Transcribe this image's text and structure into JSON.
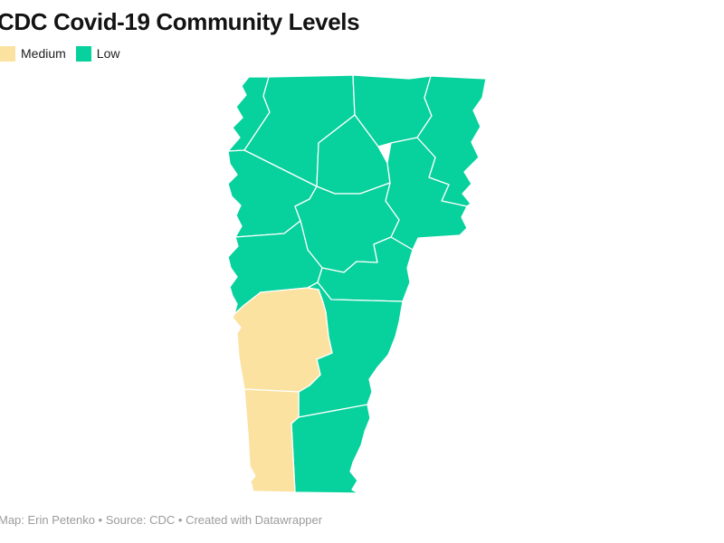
{
  "title": "CDC Covid-19 Community Levels",
  "legend": {
    "items": [
      {
        "label": "Medium",
        "color": "#fbe2a0"
      },
      {
        "label": "Low",
        "color": "#07d19c"
      }
    ]
  },
  "footer": "Map: Erin Petenko • Source: CDC • Created with Datawrapper",
  "chart_data": {
    "type": "choropleth-map",
    "region": "Vermont counties, USA",
    "title": "CDC Covid-19 Community Levels",
    "legend_position": "top-left",
    "levels": [
      "Medium",
      "Low"
    ],
    "counties": [
      {
        "name": "Grand Isle",
        "level": "Low"
      },
      {
        "name": "Franklin",
        "level": "Low"
      },
      {
        "name": "Orleans",
        "level": "Low"
      },
      {
        "name": "Essex",
        "level": "Low"
      },
      {
        "name": "Chittenden",
        "level": "Low"
      },
      {
        "name": "Lamoille",
        "level": "Low"
      },
      {
        "name": "Caledonia",
        "level": "Low"
      },
      {
        "name": "Washington",
        "level": "Low"
      },
      {
        "name": "Addison",
        "level": "Low"
      },
      {
        "name": "Orange",
        "level": "Low"
      },
      {
        "name": "Windsor",
        "level": "Low"
      },
      {
        "name": "Windham",
        "level": "Low"
      },
      {
        "name": "Rutland",
        "level": "Medium"
      },
      {
        "name": "Bennington",
        "level": "Medium"
      }
    ]
  }
}
